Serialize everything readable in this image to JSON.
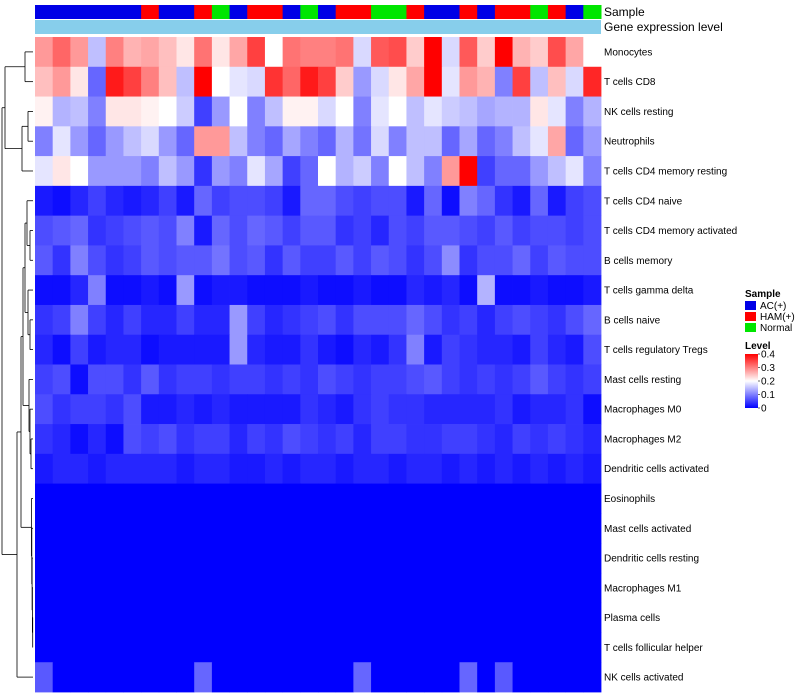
{
  "chart_data": {
    "type": "heatmap",
    "n_columns": 32,
    "rows": [
      "Monocytes",
      "T cells CD8",
      "NK cells resting",
      "Neutrophils",
      "T cells CD4 memory resting",
      "T cells CD4 naive",
      "T cells CD4 memory activated",
      "B cells memory",
      "T cells gamma delta",
      "B cells naive",
      "T cells regulatory  Tregs",
      "Mast cells resting",
      "Macrophages M0",
      "Macrophages M2",
      "Dendritic cells activated",
      "Eosinophils",
      "Mast cells activated",
      "Dendritic cells resting",
      "Macrophages M1",
      "Plasma cells",
      "T cells follicular helper",
      "NK cells activated"
    ],
    "sample_groups": [
      "AC",
      "AC",
      "AC",
      "AC",
      "AC",
      "AC",
      "HAM",
      "AC",
      "AC",
      "HAM",
      "Normal",
      "AC",
      "HAM",
      "HAM",
      "AC",
      "Normal",
      "AC",
      "HAM",
      "HAM",
      "Normal",
      "Normal",
      "HAM",
      "AC",
      "AC",
      "HAM",
      "AC",
      "HAM",
      "HAM",
      "Normal",
      "HAM",
      "AC",
      "Normal"
    ],
    "values": [
      [
        0.28,
        0.32,
        0.28,
        0.15,
        0.3,
        0.26,
        0.27,
        0.25,
        0.22,
        0.31,
        0.22,
        0.27,
        0.35,
        0.2,
        0.31,
        0.3,
        0.3,
        0.31,
        0.17,
        0.33,
        0.34,
        0.24,
        0.4,
        0.17,
        0.33,
        0.24,
        0.4,
        0.26,
        0.24,
        0.34,
        0.27,
        0.2
      ],
      [
        0.25,
        0.28,
        0.22,
        0.08,
        0.38,
        0.35,
        0.3,
        0.25,
        0.15,
        0.42,
        0.2,
        0.18,
        0.17,
        0.36,
        0.32,
        0.38,
        0.35,
        0.24,
        0.12,
        0.17,
        0.22,
        0.27,
        0.4,
        0.18,
        0.28,
        0.26,
        0.1,
        0.35,
        0.15,
        0.25,
        0.17,
        0.37
      ],
      [
        0.21,
        0.14,
        0.15,
        0.1,
        0.22,
        0.22,
        0.21,
        0.2,
        0.16,
        0.05,
        0.12,
        0.2,
        0.1,
        0.15,
        0.21,
        0.21,
        0.17,
        0.2,
        0.1,
        0.18,
        0.2,
        0.15,
        0.18,
        0.16,
        0.15,
        0.13,
        0.14,
        0.14,
        0.22,
        0.18,
        0.1,
        0.14
      ],
      [
        0.1,
        0.18,
        0.12,
        0.08,
        0.12,
        0.15,
        0.17,
        0.12,
        0.08,
        0.28,
        0.28,
        0.15,
        0.1,
        0.08,
        0.13,
        0.1,
        0.08,
        0.14,
        0.09,
        0.17,
        0.1,
        0.15,
        0.15,
        0.08,
        0.13,
        0.08,
        0.1,
        0.15,
        0.18,
        0.27,
        0.08,
        0.12
      ],
      [
        0.18,
        0.22,
        0.2,
        0.12,
        0.12,
        0.12,
        0.1,
        0.15,
        0.12,
        0.04,
        0.12,
        0.1,
        0.18,
        0.13,
        0.05,
        0.08,
        0.2,
        0.14,
        0.16,
        0.1,
        0.2,
        0.15,
        0.1,
        0.28,
        0.4,
        0.05,
        0.08,
        0.08,
        0.12,
        0.15,
        0.18,
        0.1
      ],
      [
        0.02,
        0.01,
        0.03,
        0.05,
        0.03,
        0.02,
        0.03,
        0.05,
        0.02,
        0.08,
        0.05,
        0.06,
        0.06,
        0.05,
        0.02,
        0.08,
        0.08,
        0.06,
        0.05,
        0.06,
        0.06,
        0.02,
        0.08,
        0.01,
        0.1,
        0.08,
        0.04,
        0.02,
        0.08,
        0.02,
        0.05,
        0.06
      ],
      [
        0.06,
        0.07,
        0.08,
        0.04,
        0.05,
        0.06,
        0.07,
        0.06,
        0.1,
        0.02,
        0.08,
        0.06,
        0.08,
        0.07,
        0.05,
        0.07,
        0.07,
        0.04,
        0.05,
        0.03,
        0.06,
        0.05,
        0.07,
        0.07,
        0.06,
        0.05,
        0.07,
        0.05,
        0.06,
        0.06,
        0.05,
        0.06
      ],
      [
        0.07,
        0.04,
        0.1,
        0.06,
        0.04,
        0.05,
        0.07,
        0.06,
        0.07,
        0.07,
        0.09,
        0.06,
        0.07,
        0.04,
        0.07,
        0.05,
        0.05,
        0.07,
        0.05,
        0.07,
        0.06,
        0.04,
        0.06,
        0.11,
        0.04,
        0.06,
        0.06,
        0.08,
        0.05,
        0.07,
        0.06,
        0.06
      ],
      [
        0.01,
        0.01,
        0.03,
        0.1,
        0.01,
        0.01,
        0.02,
        0.01,
        0.12,
        0.01,
        0.02,
        0.02,
        0.01,
        0.01,
        0.01,
        0.02,
        0.01,
        0.01,
        0.02,
        0.01,
        0.01,
        0.03,
        0.02,
        0.03,
        0.01,
        0.14,
        0.01,
        0.01,
        0.02,
        0.01,
        0.01,
        0.02
      ],
      [
        0.04,
        0.05,
        0.1,
        0.05,
        0.03,
        0.05,
        0.03,
        0.03,
        0.05,
        0.03,
        0.03,
        0.12,
        0.05,
        0.03,
        0.04,
        0.05,
        0.06,
        0.04,
        0.06,
        0.06,
        0.06,
        0.08,
        0.06,
        0.04,
        0.05,
        0.03,
        0.05,
        0.06,
        0.05,
        0.04,
        0.06,
        0.08
      ],
      [
        0.03,
        0.01,
        0.05,
        0.02,
        0.03,
        0.03,
        0.01,
        0.02,
        0.02,
        0.02,
        0.02,
        0.12,
        0.03,
        0.02,
        0.02,
        0.04,
        0.02,
        0.01,
        0.03,
        0.02,
        0.04,
        0.1,
        0.02,
        0.05,
        0.04,
        0.03,
        0.03,
        0.02,
        0.05,
        0.03,
        0.02,
        0.06
      ],
      [
        0.05,
        0.06,
        0.01,
        0.06,
        0.06,
        0.04,
        0.07,
        0.04,
        0.05,
        0.05,
        0.04,
        0.05,
        0.05,
        0.04,
        0.05,
        0.04,
        0.06,
        0.05,
        0.04,
        0.05,
        0.05,
        0.06,
        0.07,
        0.05,
        0.04,
        0.05,
        0.04,
        0.05,
        0.07,
        0.05,
        0.04,
        0.05
      ],
      [
        0.06,
        0.04,
        0.05,
        0.05,
        0.04,
        0.06,
        0.02,
        0.02,
        0.03,
        0.02,
        0.03,
        0.02,
        0.02,
        0.02,
        0.02,
        0.04,
        0.03,
        0.02,
        0.04,
        0.05,
        0.04,
        0.04,
        0.03,
        0.03,
        0.03,
        0.03,
        0.04,
        0.02,
        0.03,
        0.03,
        0.04,
        0.01
      ],
      [
        0.04,
        0.03,
        0.01,
        0.03,
        0.01,
        0.06,
        0.05,
        0.06,
        0.04,
        0.05,
        0.05,
        0.03,
        0.05,
        0.04,
        0.06,
        0.05,
        0.04,
        0.05,
        0.03,
        0.05,
        0.05,
        0.04,
        0.04,
        0.05,
        0.05,
        0.04,
        0.03,
        0.05,
        0.04,
        0.05,
        0.04,
        0.03
      ],
      [
        0.02,
        0.03,
        0.03,
        0.02,
        0.03,
        0.03,
        0.03,
        0.03,
        0.02,
        0.03,
        0.03,
        0.02,
        0.02,
        0.03,
        0.02,
        0.03,
        0.03,
        0.02,
        0.03,
        0.03,
        0.02,
        0.03,
        0.03,
        0.02,
        0.03,
        0.02,
        0.03,
        0.02,
        0.03,
        0.02,
        0.03,
        0.02
      ],
      [
        0,
        0,
        0,
        0,
        0,
        0,
        0,
        0,
        0,
        0,
        0,
        0,
        0,
        0,
        0,
        0,
        0,
        0,
        0,
        0,
        0,
        0,
        0,
        0,
        0,
        0,
        0,
        0,
        0,
        0,
        0,
        0
      ],
      [
        0,
        0,
        0,
        0,
        0,
        0,
        0,
        0,
        0,
        0,
        0,
        0,
        0,
        0,
        0,
        0,
        0,
        0,
        0,
        0,
        0,
        0,
        0,
        0,
        0,
        0,
        0,
        0,
        0,
        0,
        0,
        0
      ],
      [
        0,
        0,
        0,
        0,
        0,
        0,
        0,
        0,
        0,
        0,
        0,
        0,
        0,
        0,
        0,
        0,
        0,
        0,
        0,
        0,
        0,
        0,
        0,
        0,
        0,
        0,
        0,
        0,
        0,
        0,
        0,
        0
      ],
      [
        0,
        0,
        0,
        0,
        0,
        0,
        0,
        0,
        0,
        0,
        0,
        0,
        0,
        0,
        0,
        0,
        0,
        0,
        0,
        0,
        0,
        0,
        0,
        0,
        0,
        0,
        0,
        0,
        0,
        0,
        0,
        0
      ],
      [
        0,
        0,
        0,
        0,
        0,
        0,
        0,
        0,
        0,
        0,
        0,
        0,
        0,
        0,
        0,
        0,
        0,
        0,
        0,
        0,
        0,
        0,
        0,
        0,
        0,
        0,
        0,
        0,
        0,
        0,
        0,
        0
      ],
      [
        0,
        0,
        0,
        0,
        0,
        0,
        0,
        0,
        0,
        0,
        0,
        0,
        0,
        0,
        0,
        0,
        0,
        0,
        0,
        0,
        0,
        0,
        0,
        0,
        0,
        0,
        0,
        0,
        0,
        0,
        0,
        0
      ],
      [
        0.07,
        0,
        0,
        0,
        0,
        0,
        0,
        0,
        0,
        0.08,
        0,
        0,
        0,
        0,
        0,
        0,
        0,
        0,
        0.08,
        0,
        0,
        0,
        0,
        0,
        0.08,
        0,
        0.07,
        0,
        0,
        0,
        0,
        0
      ]
    ],
    "annotations": {
      "sample_label": "Sample",
      "gene_expression_label": "Gene expression level"
    },
    "legend": {
      "placement": "right",
      "sample": {
        "title": "Sample",
        "entries": [
          {
            "key": "AC",
            "label": "AC(+)",
            "color": "#0000e6"
          },
          {
            "key": "HAM",
            "label": "HAM(+)",
            "color": "#ff0000"
          },
          {
            "key": "Normal",
            "label": "Normal",
            "color": "#00e600"
          }
        ]
      },
      "level": {
        "title": "Level",
        "range": [
          0,
          0.4
        ],
        "ticks": [
          "0.4",
          "0.3",
          "0.2",
          "0.1",
          "0"
        ],
        "tick_values": [
          0.4,
          0.3,
          0.2,
          0.1,
          0
        ]
      }
    },
    "colors": {
      "low": "#0000ff",
      "mid": "#ffffff",
      "high": "#ff0000",
      "gene_expression_bar": "#87ceeb"
    }
  }
}
